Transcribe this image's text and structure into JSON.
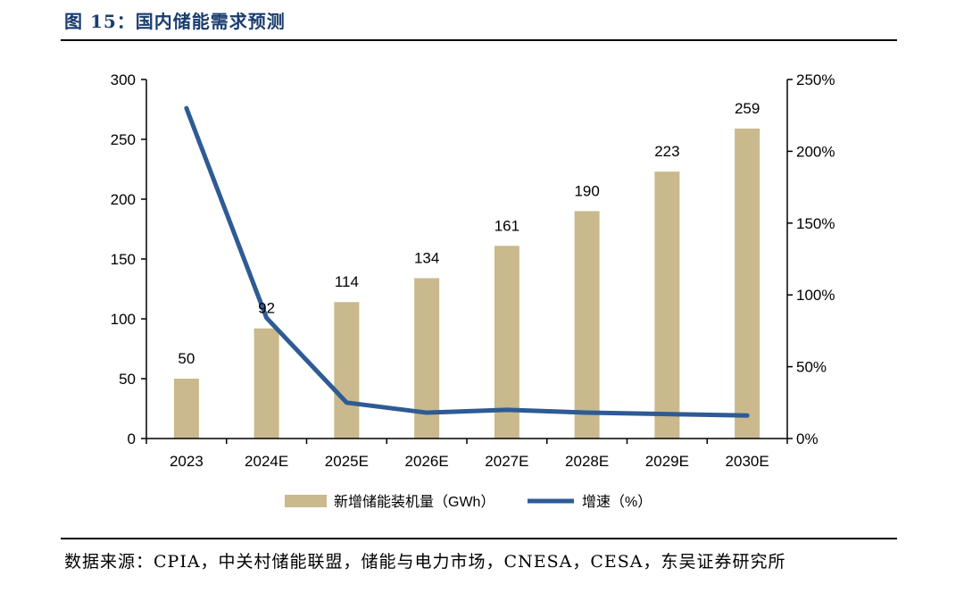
{
  "figure": {
    "title": "图 15：国内储能需求预测",
    "source": "数据来源：CPIA，中关村储能联盟，储能与电力市场，CNESA，CESA，东吴证券研究所"
  },
  "colors": {
    "title": "#1a3d6e",
    "bar": "#c9b98c",
    "line": "#2e5b94",
    "axis": "#000000"
  },
  "chart_data": {
    "type": "bar",
    "categories": [
      "2023",
      "2024E",
      "2025E",
      "2026E",
      "2027E",
      "2028E",
      "2029E",
      "2030E"
    ],
    "series": [
      {
        "name": "新增储能装机量（GWh）",
        "type": "bar",
        "axis": "left",
        "values": [
          50,
          92,
          114,
          134,
          161,
          190,
          223,
          259
        ],
        "labels": [
          "50",
          "92",
          "114",
          "134",
          "161",
          "190",
          "223",
          "259"
        ]
      },
      {
        "name": "增速（%）",
        "type": "line",
        "axis": "right",
        "values": [
          230,
          84,
          25,
          18,
          20,
          18,
          17,
          16
        ]
      }
    ],
    "y_left": {
      "min": 0,
      "max": 300,
      "ticks": [
        "0",
        "50",
        "100",
        "150",
        "200",
        "250",
        "300"
      ]
    },
    "y_right": {
      "min": 0,
      "max": 250,
      "ticks": [
        "0%",
        "50%",
        "100%",
        "150%",
        "200%",
        "250%"
      ]
    },
    "legend": {
      "position": "bottom",
      "items": [
        "新增储能装机量（GWh）",
        "增速（%）"
      ]
    },
    "grid": false
  }
}
